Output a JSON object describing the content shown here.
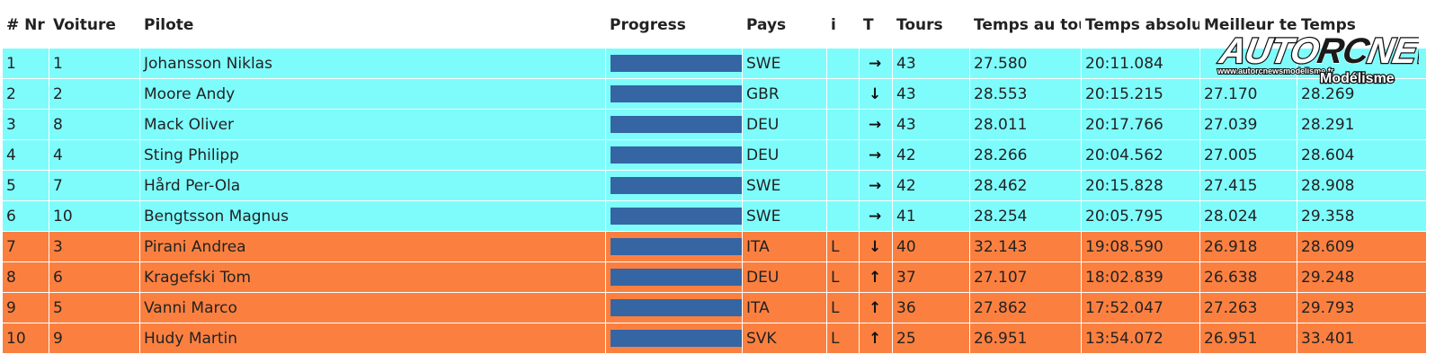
{
  "headers": [
    "# Nr",
    "Voiture",
    "Pilote",
    "Progress",
    "Pays",
    "i",
    "T",
    "Tours",
    "Temps au tour",
    "Temps absolu",
    "Meilleur temps",
    "Temps"
  ],
  "rows": [
    {
      "nr": "1",
      "voiture": "1",
      "pilote": "Johansson Niklas",
      "progress": 1.0,
      "pays": "SWE",
      "i": "",
      "trend": "→",
      "trend_icon": "arrow-right-icon",
      "tours": "43",
      "temps_tour": "27.580",
      "temps_absolu": "20:11.084",
      "meilleur": "",
      "temps": ""
    },
    {
      "nr": "2",
      "voiture": "2",
      "pilote": "Moore Andy",
      "progress": 1.0,
      "pays": "GBR",
      "i": "",
      "trend": "↓",
      "trend_icon": "arrow-down-icon",
      "tours": "43",
      "temps_tour": "28.553",
      "temps_absolu": "20:15.215",
      "meilleur": "27.170",
      "temps": "28.269"
    },
    {
      "nr": "3",
      "voiture": "8",
      "pilote": "Mack Oliver",
      "progress": 1.0,
      "pays": "DEU",
      "i": "",
      "trend": "→",
      "trend_icon": "arrow-right-icon",
      "tours": "43",
      "temps_tour": "28.011",
      "temps_absolu": "20:17.766",
      "meilleur": "27.039",
      "temps": "28.291"
    },
    {
      "nr": "4",
      "voiture": "4",
      "pilote": "Sting Philipp",
      "progress": 1.0,
      "pays": "DEU",
      "i": "",
      "trend": "→",
      "trend_icon": "arrow-right-icon",
      "tours": "42",
      "temps_tour": "28.266",
      "temps_absolu": "20:04.562",
      "meilleur": "27.005",
      "temps": "28.604"
    },
    {
      "nr": "5",
      "voiture": "7",
      "pilote": "Hård Per-Ola",
      "progress": 1.0,
      "pays": "SWE",
      "i": "",
      "trend": "→",
      "trend_icon": "arrow-right-icon",
      "tours": "42",
      "temps_tour": "28.462",
      "temps_absolu": "20:15.828",
      "meilleur": "27.415",
      "temps": "28.908"
    },
    {
      "nr": "6",
      "voiture": "10",
      "pilote": "Bengtsson Magnus",
      "progress": 1.0,
      "pays": "SWE",
      "i": "",
      "trend": "→",
      "trend_icon": "arrow-right-icon",
      "tours": "41",
      "temps_tour": "28.254",
      "temps_absolu": "20:05.795",
      "meilleur": "28.024",
      "temps": "29.358"
    },
    {
      "nr": "7",
      "voiture": "3",
      "pilote": "Pirani Andrea",
      "progress": 1.0,
      "pays": "ITA",
      "i": "L",
      "trend": "↓",
      "trend_icon": "arrow-down-icon",
      "tours": "40",
      "temps_tour": "32.143",
      "temps_absolu": "19:08.590",
      "meilleur": "26.918",
      "temps": "28.609"
    },
    {
      "nr": "8",
      "voiture": "6",
      "pilote": "Kragefski Tom",
      "progress": 1.0,
      "pays": "DEU",
      "i": "L",
      "trend": "↑",
      "trend_icon": "arrow-up-icon",
      "tours": "37",
      "temps_tour": "27.107",
      "temps_absolu": "18:02.839",
      "meilleur": "26.638",
      "temps": "29.248"
    },
    {
      "nr": "9",
      "voiture": "5",
      "pilote": "Vanni Marco",
      "progress": 1.0,
      "pays": "ITA",
      "i": "L",
      "trend": "↑",
      "trend_icon": "arrow-up-icon",
      "tours": "36",
      "temps_tour": "27.862",
      "temps_absolu": "17:52.047",
      "meilleur": "27.263",
      "temps": "29.793"
    },
    {
      "nr": "10",
      "voiture": "9",
      "pilote": "Hudy Martin",
      "progress": 1.0,
      "pays": "SVK",
      "i": "L",
      "trend": "↑",
      "trend_icon": "arrow-up-icon",
      "tours": "25",
      "temps_tour": "26.951",
      "temps_absolu": "13:54.072",
      "meilleur": "26.951",
      "temps": "33.401"
    }
  ],
  "row_groups": {
    "cyan_count": 6
  },
  "colors": {
    "cyan": "#7efcfc",
    "orange": "#fb8040",
    "bar": "#3565a3"
  },
  "watermark": {
    "line1": "AUTO RC NEWS",
    "line2": "www.autorcnewsmodelisme.fr",
    "line3": "Modélisme",
    "icon": "autorcnews-logo"
  }
}
